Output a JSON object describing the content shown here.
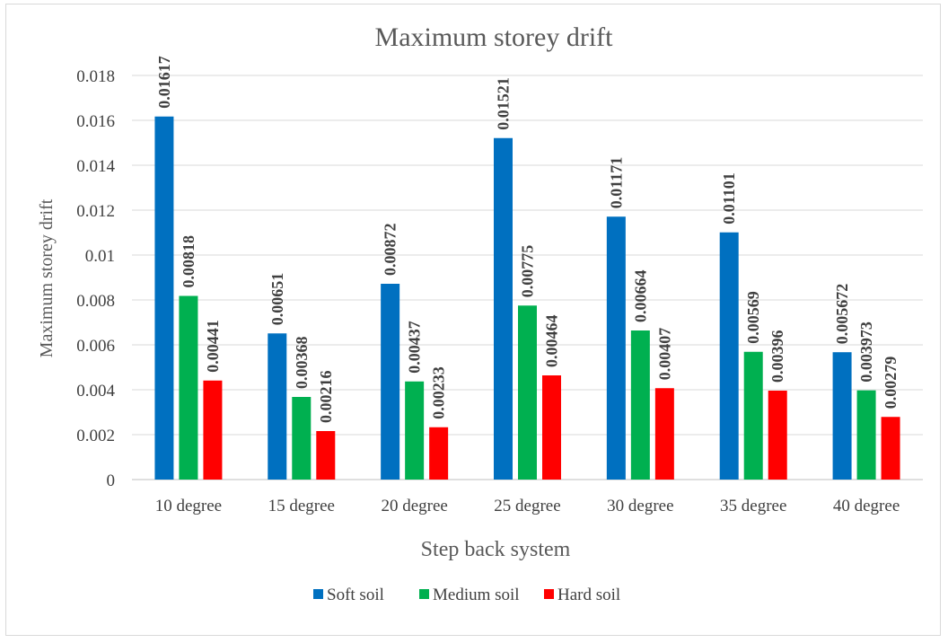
{
  "chart_data": {
    "type": "bar",
    "title": "Maximum storey drift",
    "xlabel": "Step back system",
    "ylabel": "Maximum storey drift",
    "categories": [
      "10 degree",
      "15 degree",
      "20 degree",
      "25 degree",
      "30 degree",
      "35 degree",
      "40 degree"
    ],
    "series": [
      {
        "name": "Soft soil",
        "color": "#0070C0",
        "values": [
          0.01617,
          0.00651,
          0.00872,
          0.01521,
          0.01171,
          0.01101,
          0.005672
        ],
        "labels": [
          "0.01617",
          "0.00651",
          "0.00872",
          "0.01521",
          "0.01171",
          "0.01101",
          "0.005672"
        ]
      },
      {
        "name": "Medium soil",
        "color": "#00B050",
        "values": [
          0.00818,
          0.00368,
          0.00437,
          0.00775,
          0.00664,
          0.00569,
          0.003973
        ],
        "labels": [
          "0.00818",
          "0.00368",
          "0.00437",
          "0.00775",
          "0.00664",
          "0.00569",
          "0.003973"
        ]
      },
      {
        "name": "Hard soil",
        "color": "#FF0000",
        "values": [
          0.00441,
          0.00216,
          0.00233,
          0.00464,
          0.00407,
          0.00396,
          0.00279
        ],
        "labels": [
          "0.00441",
          "0.00216",
          "0.00233",
          "0.00464",
          "0.00407",
          "0.00396",
          "0.00279"
        ]
      }
    ],
    "ylim": [
      0,
      0.018
    ],
    "yticks": [
      "0",
      "0.002",
      "0.004",
      "0.006",
      "0.008",
      "0.01",
      "0.012",
      "0.014",
      "0.016",
      "0.018"
    ],
    "grid": true,
    "legend_position": "bottom",
    "gridline_color": "#d9d9d9",
    "text_color": "#404040"
  }
}
